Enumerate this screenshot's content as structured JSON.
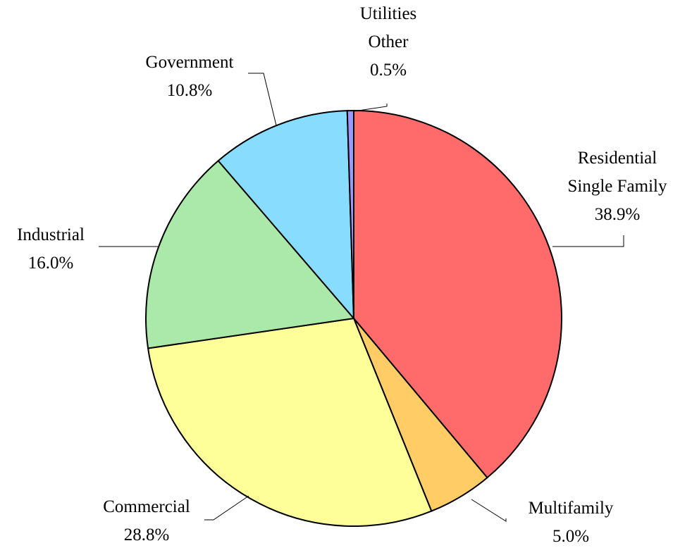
{
  "chart_data": {
    "type": "pie",
    "title": "",
    "slices": [
      {
        "lines": [
          "Residential",
          "Single Family"
        ],
        "percent_label": "38.9%",
        "value": 38.9,
        "color": "#FF6B6B"
      },
      {
        "lines": [
          "Multifamily"
        ],
        "percent_label": "5.0%",
        "value": 5.0,
        "color": "#FFCC66"
      },
      {
        "lines": [
          "Commercial"
        ],
        "percent_label": "28.8%",
        "value": 28.8,
        "color": "#FFFF99"
      },
      {
        "lines": [
          "Industrial"
        ],
        "percent_label": "16.0%",
        "value": 16.0,
        "color": "#ABE9AA"
      },
      {
        "lines": [
          "Government"
        ],
        "percent_label": "10.8%",
        "value": 10.8,
        "color": "#88DDFF"
      },
      {
        "lines": [
          "Utilities",
          "Other"
        ],
        "percent_label": "0.5%",
        "value": 0.5,
        "color": "#9999FF"
      }
    ]
  }
}
